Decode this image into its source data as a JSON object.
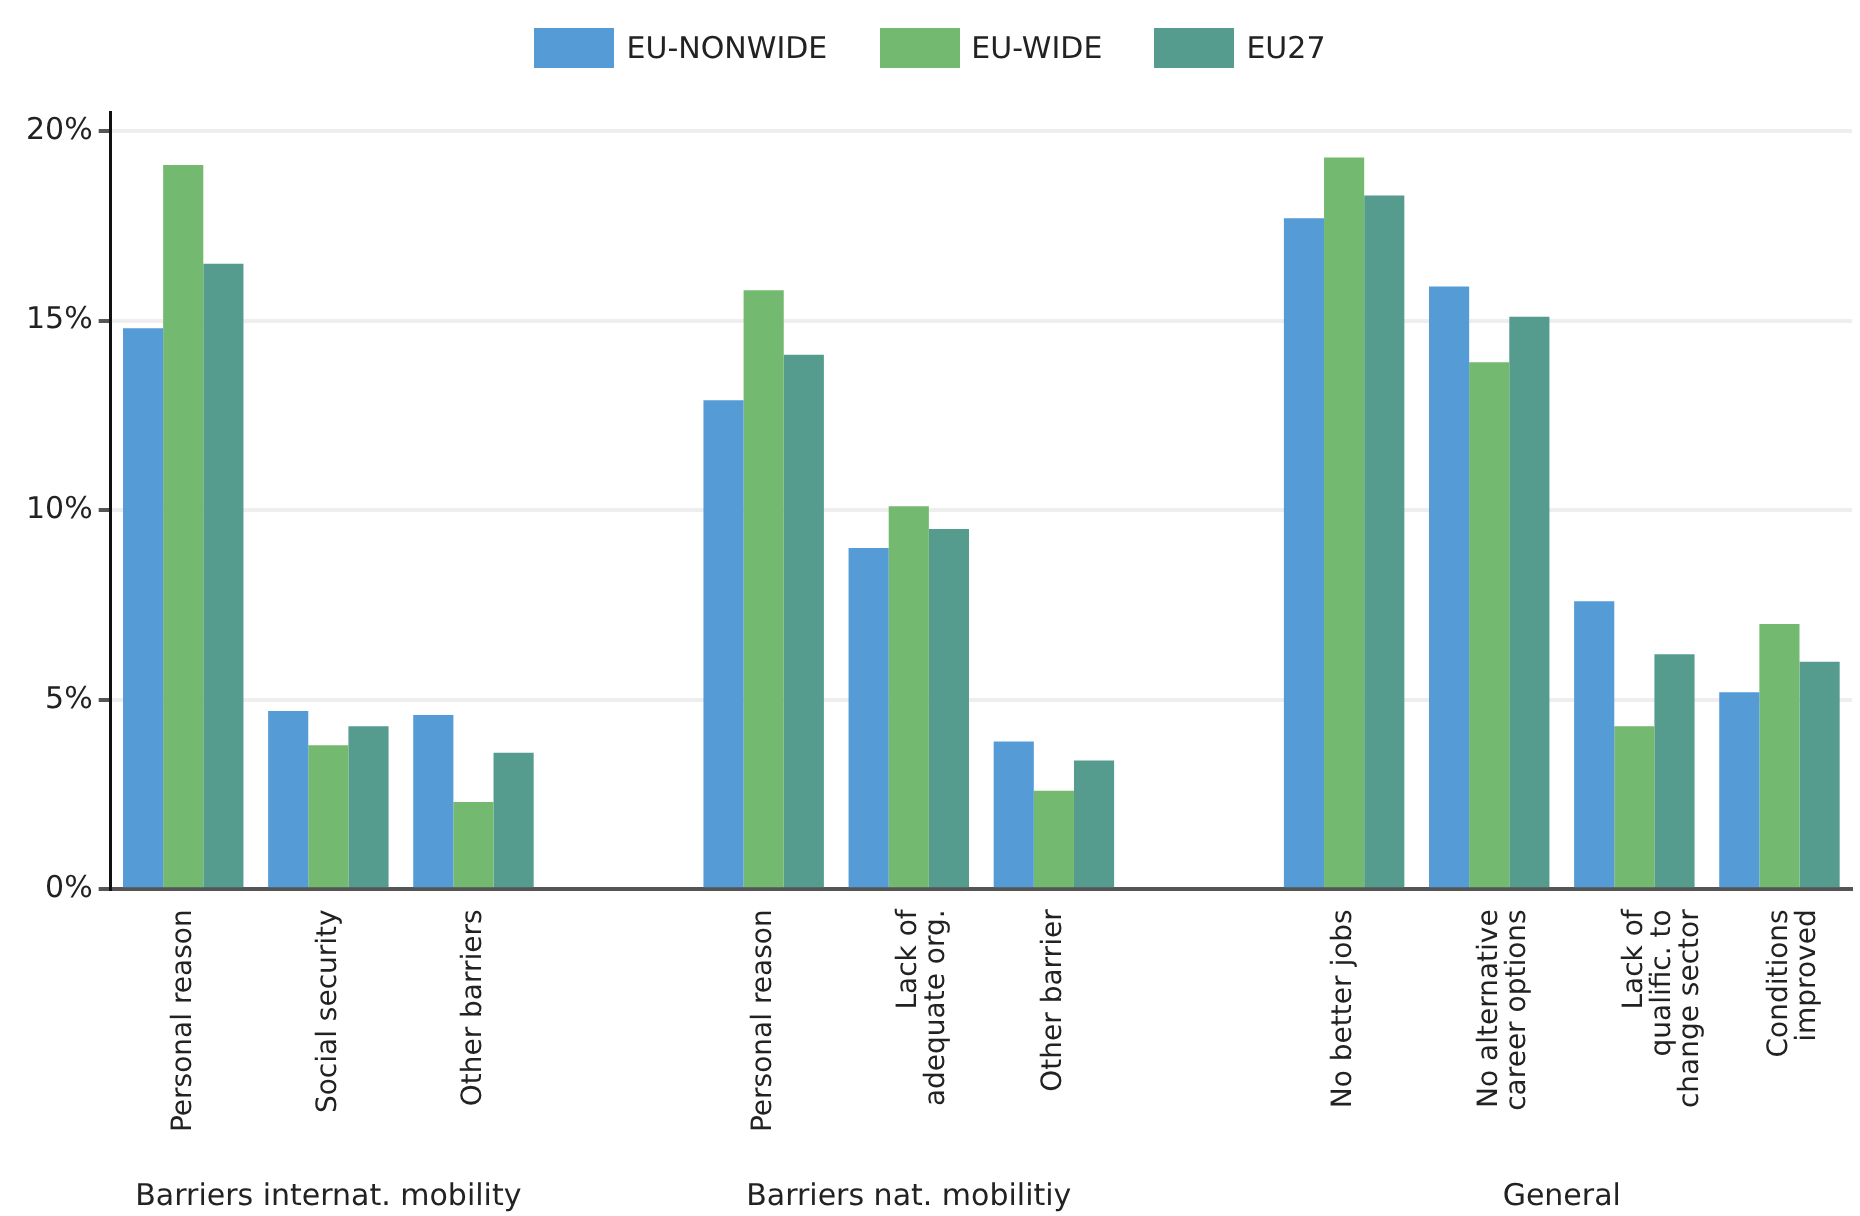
{
  "chart_data": {
    "type": "bar",
    "categories": [
      "Personal reason",
      "Social security",
      "Other barriers",
      null,
      "Personal reason",
      "Lack of\nadequate org.",
      "Other barrier",
      null,
      "No better jobs",
      "No alternative\ncareer options",
      "Lack of\nqualific. to\nchange sector",
      "Conditions\nimproved"
    ],
    "series": [
      {
        "name": "EU-NONWIDE",
        "color": "#559bd6",
        "values": [
          14.8,
          4.7,
          4.6,
          null,
          12.9,
          9.0,
          3.9,
          null,
          17.7,
          15.9,
          7.6,
          5.2
        ]
      },
      {
        "name": "EU-WIDE",
        "color": "#73b96f",
        "values": [
          19.1,
          3.8,
          2.3,
          null,
          15.8,
          10.1,
          2.6,
          null,
          19.3,
          13.9,
          4.3,
          7.0
        ]
      },
      {
        "name": "EU27",
        "color": "#559c8e",
        "values": [
          16.5,
          4.3,
          3.6,
          null,
          14.1,
          9.5,
          3.4,
          null,
          18.3,
          15.1,
          6.2,
          6.0
        ]
      }
    ],
    "ylim": [
      0,
      20.5
    ],
    "yticks": [
      {
        "value": 0,
        "label": "0%"
      },
      {
        "value": 5,
        "label": "5%"
      },
      {
        "value": 10,
        "label": "10%"
      },
      {
        "value": 15,
        "label": "15%"
      },
      {
        "value": 20,
        "label": "20%"
      }
    ],
    "grid": "y",
    "legend": "top",
    "annotations": [
      "Barriers internat. mobility",
      "Barriers nat. mobilitiy",
      "General"
    ]
  }
}
